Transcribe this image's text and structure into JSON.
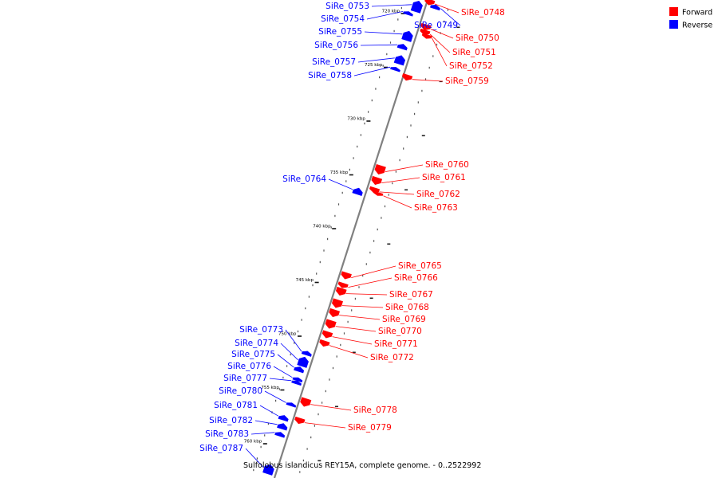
{
  "legend": {
    "items": [
      {
        "label": "Forward",
        "color": "#ff0000"
      },
      {
        "label": "Reverse",
        "color": "#0000ff"
      }
    ]
  },
  "caption": "Sulfolobus islandicus REY15A, complete genome. - 0..2522992",
  "colors": {
    "forward": "#ff0000",
    "reverse": "#0000ff",
    "backbone": "#808080"
  },
  "ticks": [
    {
      "label": "720 kbp",
      "kbp": 720
    },
    {
      "label": "725 kbp",
      "kbp": 725
    },
    {
      "label": "730 kbp",
      "kbp": 730
    },
    {
      "label": "735 kbp",
      "kbp": 735
    },
    {
      "label": "740 kbp",
      "kbp": 740
    },
    {
      "label": "745 kbp",
      "kbp": 745
    },
    {
      "label": "750 kbp",
      "kbp": 750
    },
    {
      "label": "755 kbp",
      "kbp": 755
    },
    {
      "label": "760 kbp",
      "kbp": 760
    }
  ],
  "genes": [
    {
      "name": "SiRe_0748",
      "strand": "forward"
    },
    {
      "name": "SiRe_0749",
      "strand": "reverse"
    },
    {
      "name": "SiRe_0750",
      "strand": "forward"
    },
    {
      "name": "SiRe_0751",
      "strand": "forward"
    },
    {
      "name": "SiRe_0752",
      "strand": "forward"
    },
    {
      "name": "SiRe_0753",
      "strand": "reverse"
    },
    {
      "name": "SiRe_0754",
      "strand": "reverse"
    },
    {
      "name": "SiRe_0755",
      "strand": "reverse"
    },
    {
      "name": "SiRe_0756",
      "strand": "reverse"
    },
    {
      "name": "SiRe_0757",
      "strand": "reverse"
    },
    {
      "name": "SiRe_0758",
      "strand": "reverse"
    },
    {
      "name": "SiRe_0759",
      "strand": "forward"
    },
    {
      "name": "SiRe_0760",
      "strand": "forward"
    },
    {
      "name": "SiRe_0761",
      "strand": "forward"
    },
    {
      "name": "SiRe_0762",
      "strand": "forward"
    },
    {
      "name": "SiRe_0763",
      "strand": "forward"
    },
    {
      "name": "SiRe_0764",
      "strand": "reverse"
    },
    {
      "name": "SiRe_0765",
      "strand": "forward"
    },
    {
      "name": "SiRe_0766",
      "strand": "forward"
    },
    {
      "name": "SiRe_0767",
      "strand": "forward"
    },
    {
      "name": "SiRe_0768",
      "strand": "forward"
    },
    {
      "name": "SiRe_0769",
      "strand": "forward"
    },
    {
      "name": "SiRe_0770",
      "strand": "forward"
    },
    {
      "name": "SiRe_0771",
      "strand": "forward"
    },
    {
      "name": "SiRe_0772",
      "strand": "forward"
    },
    {
      "name": "SiRe_0773",
      "strand": "reverse"
    },
    {
      "name": "SiRe_0774",
      "strand": "reverse"
    },
    {
      "name": "SiRe_0775",
      "strand": "reverse"
    },
    {
      "name": "SiRe_0776",
      "strand": "reverse"
    },
    {
      "name": "SiRe_0777",
      "strand": "reverse"
    },
    {
      "name": "SiRe_0778",
      "strand": "forward"
    },
    {
      "name": "SiRe_0779",
      "strand": "forward"
    },
    {
      "name": "SiRe_0780",
      "strand": "reverse"
    },
    {
      "name": "SiRe_0781",
      "strand": "reverse"
    },
    {
      "name": "SiRe_0782",
      "strand": "reverse"
    },
    {
      "name": "SiRe_0783",
      "strand": "reverse"
    },
    {
      "name": "SiRe_0787",
      "strand": "reverse"
    }
  ]
}
